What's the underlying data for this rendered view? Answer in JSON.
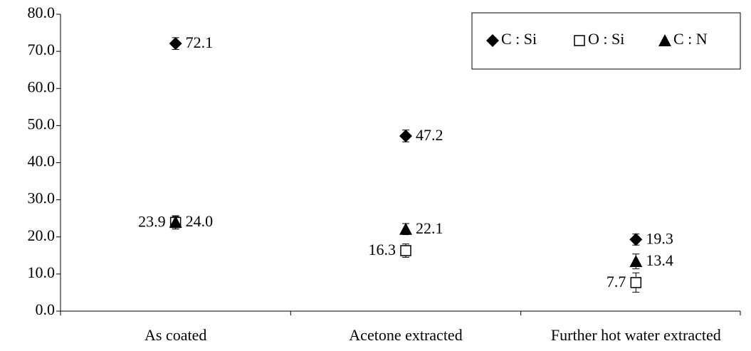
{
  "chart_data": {
    "type": "scatter",
    "categories": [
      "As coated",
      "Acetone extracted",
      "Further hot water extracted"
    ],
    "series": [
      {
        "name": "C : Si",
        "marker": "diamond",
        "color": "#000000",
        "values": [
          72.1,
          47.2,
          19.3
        ],
        "errors": [
          1.6,
          1.6,
          1.5
        ],
        "value_labels": [
          "72.1",
          "47.2",
          "19.3"
        ]
      },
      {
        "name": "O : Si",
        "marker": "square-open",
        "color": "#000000",
        "values": [
          23.9,
          16.3,
          7.7
        ],
        "errors": [
          1.8,
          1.8,
          2.6
        ],
        "value_labels": [
          "23.9",
          "16.3",
          "7.7"
        ]
      },
      {
        "name": "C : N",
        "marker": "triangle",
        "color": "#000000",
        "values": [
          24.0,
          22.1,
          13.4
        ],
        "errors": [
          1.5,
          1.5,
          2.0
        ],
        "value_labels": [
          "24.0",
          "22.1",
          "13.4"
        ]
      }
    ],
    "ylim": [
      0,
      80
    ],
    "yticks": [
      {
        "value": 0,
        "label": "0.0"
      },
      {
        "value": 10,
        "label": "10.0"
      },
      {
        "value": 20,
        "label": "20.0"
      },
      {
        "value": 30,
        "label": "30.0"
      },
      {
        "value": 40,
        "label": "40.0"
      },
      {
        "value": 50,
        "label": "50.0"
      },
      {
        "value": 60,
        "label": "60.0"
      },
      {
        "value": 70,
        "label": "70.0"
      },
      {
        "value": 80,
        "label": "80.0"
      }
    ],
    "legend": "top-right"
  }
}
